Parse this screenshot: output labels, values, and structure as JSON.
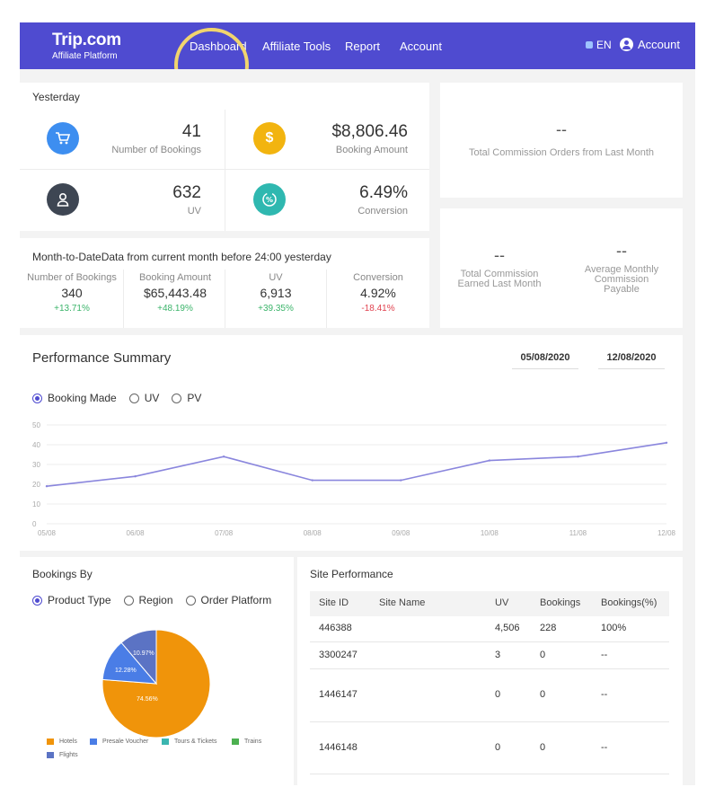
{
  "nav": {
    "logo_main": "Trip.com",
    "logo_sub": "Affiliate Platform",
    "items": [
      "Dashboard",
      "Affiliate Tools",
      "Report",
      "Account"
    ],
    "lang": "EN",
    "account": "Account"
  },
  "yesterday": {
    "title": "Yesterday",
    "bookings": {
      "value": "41",
      "label": "Number of Bookings"
    },
    "amount": {
      "value": "$8,806.46",
      "label": "Booking Amount"
    },
    "uv": {
      "value": "632",
      "label": "UV"
    },
    "conversion": {
      "value": "6.49%",
      "label": "Conversion"
    }
  },
  "commission": {
    "orders_value": "--",
    "orders_label": "Total Commission Orders from Last Month",
    "earned_value": "--",
    "earned_label_1": "Total Commission",
    "earned_label_2": "Earned Last Month",
    "avg_value": "--",
    "avg_label_1": "Average Monthly",
    "avg_label_2": "Commission",
    "avg_label_3": "Payable"
  },
  "mtd": {
    "title": "Month-to-DateData from current month before 24:00 yesterday",
    "cols": [
      {
        "label": "Number of Bookings",
        "value": "340",
        "change": "+13.71%"
      },
      {
        "label": "Booking Amount",
        "value": "$65,443.48",
        "change": "+48.19%"
      },
      {
        "label": "UV",
        "value": "6,913",
        "change": "+39.35%"
      },
      {
        "label": "Conversion",
        "value": "4.92%",
        "change": "-18.41%"
      }
    ]
  },
  "performance": {
    "title": "Performance Summary",
    "date_start": "05/08/2020",
    "date_end": "12/08/2020",
    "options": [
      "Booking Made",
      "UV",
      "PV"
    ],
    "selected": "Booking Made"
  },
  "chart_data": {
    "type": "line",
    "title": "Performance Summary",
    "x": [
      "05/08",
      "06/08",
      "07/08",
      "08/08",
      "09/08",
      "10/08",
      "11/08",
      "12/08"
    ],
    "series": [
      {
        "name": "Booking Made",
        "values": [
          19,
          24,
          34,
          22,
          22,
          32,
          34,
          41
        ]
      }
    ],
    "yticks": [
      "0",
      "10",
      "20",
      "30",
      "40",
      "50"
    ],
    "ylim": [
      0,
      50
    ],
    "grid": true,
    "color": "#8a86dd"
  },
  "bookings_by": {
    "title": "Bookings By",
    "options": [
      "Product Type",
      "Region",
      "Order Platform"
    ],
    "selected": "Product Type",
    "pie": {
      "labels": [
        "Hotels",
        "Presale Voucher",
        "Tours & Tickets",
        "Trains",
        "Flights"
      ],
      "values": [
        74.56,
        12.28,
        0,
        0,
        10.97
      ],
      "colors": [
        "#f0940a",
        "#4a7de6",
        "#3bb6b0",
        "#4cb050",
        "#5b73c4"
      ],
      "slice_labels": [
        "74.56%",
        "12.28%",
        "",
        "",
        "10.97%"
      ]
    }
  },
  "site_performance": {
    "title": "Site Performance",
    "headers": [
      "Site ID",
      "Site Name",
      "UV",
      "Bookings",
      "Bookings(%)"
    ],
    "rows": [
      [
        "446388",
        "",
        "4,506",
        "228",
        "100%"
      ],
      [
        "3300247",
        "",
        "3",
        "0",
        "--"
      ],
      [
        "1446147",
        "",
        "0",
        "0",
        "--"
      ],
      [
        "1446148",
        "",
        "0",
        "0",
        "--"
      ]
    ]
  },
  "colors": {
    "brand": "#4f4bd0",
    "cart": "#3d8ef0",
    "dollar": "#f2b40f",
    "user": "#3e4653",
    "conversion": "#2fb8b0"
  }
}
